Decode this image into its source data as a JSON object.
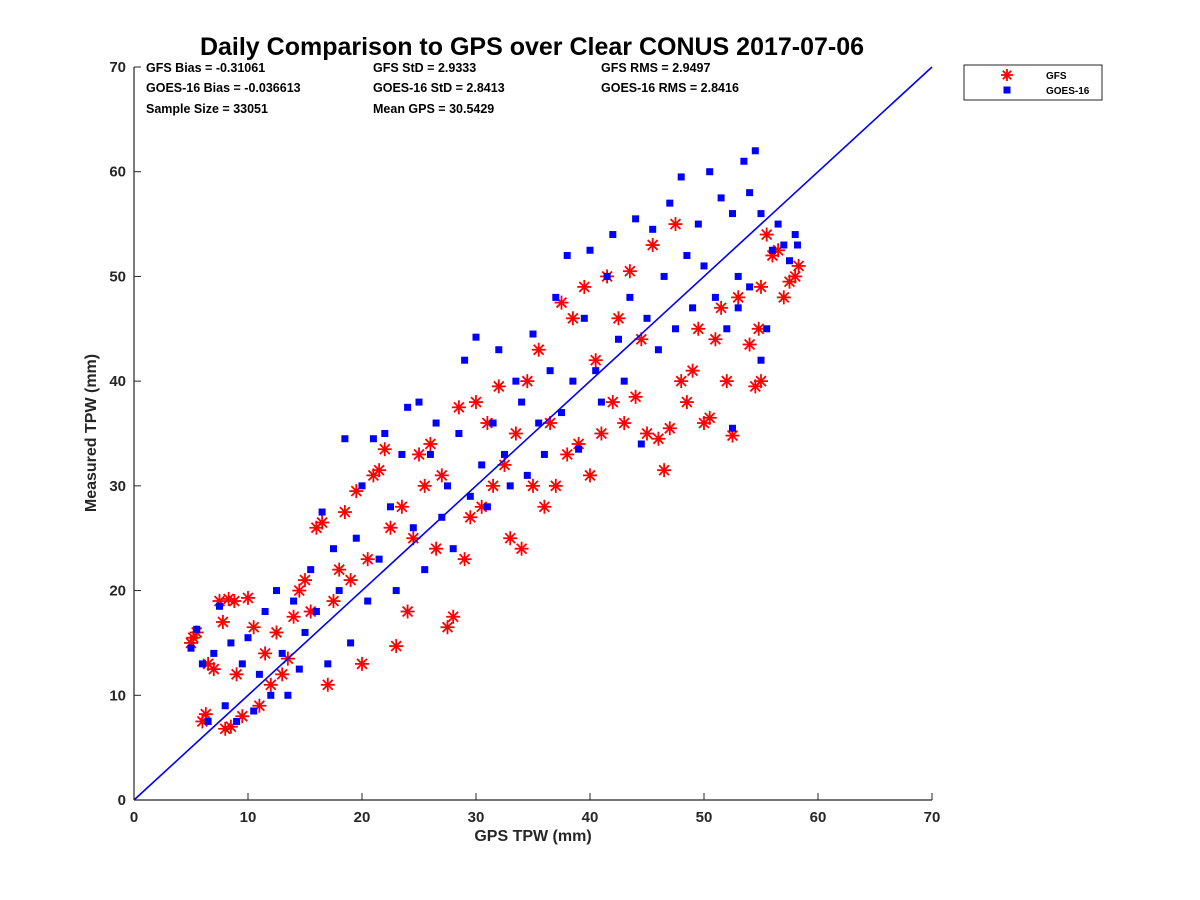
{
  "chart_data": {
    "type": "scatter",
    "title": "Daily Comparison to GPS over Clear CONUS 2017-07-06",
    "xlabel": "GPS TPW (mm)",
    "ylabel": "Measured TPW (mm)",
    "xlim": [
      0,
      70
    ],
    "ylim": [
      0,
      70
    ],
    "xticks": [
      "0",
      "10",
      "20",
      "30",
      "40",
      "50",
      "60",
      "70"
    ],
    "yticks": [
      "0",
      "10",
      "20",
      "30",
      "40",
      "50",
      "60",
      "70"
    ],
    "grid": false,
    "legend_position": "outside-top-right",
    "reference_line": {
      "name": "1:1 line",
      "color": "#0000ff",
      "x": [
        0,
        70
      ],
      "y": [
        0,
        70
      ]
    },
    "stats": [
      [
        "GFS Bias = -0.31061",
        "GFS StD = 2.9333",
        "GFS RMS = 2.9497"
      ],
      [
        "GOES-16 Bias = -0.036613",
        "GOES-16 StD = 2.8413",
        "GOES-16 RMS = 2.8416"
      ],
      [
        "Sample Size = 33051",
        "Mean GPS = 30.5429",
        ""
      ]
    ],
    "series": [
      {
        "name": "GFS",
        "marker": "asterisk",
        "color": "#ff0000",
        "points": [
          [
            5.0,
            15.0
          ],
          [
            5.2,
            15.5
          ],
          [
            5.5,
            16.0
          ],
          [
            6.0,
            7.5
          ],
          [
            6.3,
            8.2
          ],
          [
            6.5,
            13.0
          ],
          [
            7.0,
            12.5
          ],
          [
            7.5,
            19.0
          ],
          [
            7.8,
            17.0
          ],
          [
            8.0,
            6.8
          ],
          [
            8.3,
            19.2
          ],
          [
            8.5,
            7.0
          ],
          [
            8.8,
            19.0
          ],
          [
            9.0,
            12.0
          ],
          [
            9.5,
            8.0
          ],
          [
            10.0,
            19.3
          ],
          [
            10.5,
            16.5
          ],
          [
            11.0,
            9.0
          ],
          [
            11.5,
            14.0
          ],
          [
            12.0,
            11.0
          ],
          [
            12.5,
            16.0
          ],
          [
            13.0,
            12.0
          ],
          [
            13.5,
            13.5
          ],
          [
            14.0,
            17.5
          ],
          [
            14.5,
            20.0
          ],
          [
            15.0,
            21.0
          ],
          [
            15.5,
            18.0
          ],
          [
            16.0,
            26.0
          ],
          [
            16.5,
            26.5
          ],
          [
            17.0,
            11.0
          ],
          [
            17.5,
            19.0
          ],
          [
            18.0,
            22.0
          ],
          [
            18.5,
            27.5
          ],
          [
            19.0,
            21.0
          ],
          [
            19.5,
            29.5
          ],
          [
            20.0,
            13.0
          ],
          [
            20.5,
            23.0
          ],
          [
            21.0,
            31.0
          ],
          [
            21.5,
            31.5
          ],
          [
            22.0,
            33.5
          ],
          [
            22.5,
            26.0
          ],
          [
            23.0,
            14.7
          ],
          [
            23.5,
            28.0
          ],
          [
            24.0,
            18.0
          ],
          [
            24.5,
            25.0
          ],
          [
            25.0,
            33.0
          ],
          [
            25.5,
            30.0
          ],
          [
            26.0,
            34.0
          ],
          [
            26.5,
            24.0
          ],
          [
            27.0,
            31.0
          ],
          [
            27.5,
            16.5
          ],
          [
            28.0,
            17.5
          ],
          [
            28.5,
            37.5
          ],
          [
            29.0,
            23.0
          ],
          [
            29.5,
            27.0
          ],
          [
            30.0,
            38.0
          ],
          [
            30.5,
            28.0
          ],
          [
            31.0,
            36.0
          ],
          [
            31.5,
            30.0
          ],
          [
            32.0,
            39.5
          ],
          [
            32.5,
            32.0
          ],
          [
            33.0,
            25.0
          ],
          [
            33.5,
            35.0
          ],
          [
            34.0,
            24.0
          ],
          [
            34.5,
            40.0
          ],
          [
            35.0,
            30.0
          ],
          [
            35.5,
            43.0
          ],
          [
            36.0,
            28.0
          ],
          [
            36.5,
            36.0
          ],
          [
            37.0,
            30.0
          ],
          [
            37.5,
            47.5
          ],
          [
            38.0,
            33.0
          ],
          [
            38.5,
            46.0
          ],
          [
            39.0,
            34.0
          ],
          [
            39.5,
            49.0
          ],
          [
            40.0,
            31.0
          ],
          [
            40.5,
            42.0
          ],
          [
            41.0,
            35.0
          ],
          [
            41.5,
            50.0
          ],
          [
            42.0,
            38.0
          ],
          [
            42.5,
            46.0
          ],
          [
            43.0,
            36.0
          ],
          [
            43.5,
            50.5
          ],
          [
            44.0,
            38.5
          ],
          [
            44.5,
            44.0
          ],
          [
            45.0,
            35.0
          ],
          [
            45.5,
            53.0
          ],
          [
            46.0,
            34.5
          ],
          [
            46.5,
            31.5
          ],
          [
            47.0,
            35.5
          ],
          [
            47.5,
            55.0
          ],
          [
            48.0,
            40.0
          ],
          [
            48.5,
            38.0
          ],
          [
            49.0,
            41.0
          ],
          [
            49.5,
            45.0
          ],
          [
            50.0,
            36.0
          ],
          [
            50.5,
            36.5
          ],
          [
            51.0,
            44.0
          ],
          [
            51.5,
            47.0
          ],
          [
            52.0,
            40.0
          ],
          [
            52.5,
            34.8
          ],
          [
            53.0,
            48.0
          ],
          [
            54.0,
            43.5
          ],
          [
            54.5,
            39.5
          ],
          [
            55.0,
            40.0
          ],
          [
            55.5,
            54.0
          ],
          [
            56.0,
            52.0
          ],
          [
            56.5,
            52.5
          ],
          [
            57.0,
            48.0
          ],
          [
            57.5,
            49.5
          ],
          [
            58.0,
            50.0
          ],
          [
            58.3,
            51.0
          ],
          [
            55.0,
            49.0
          ],
          [
            54.8,
            45.0
          ]
        ]
      },
      {
        "name": "GOES-16",
        "marker": "square",
        "color": "#0000ff",
        "points": [
          [
            5.0,
            14.5
          ],
          [
            5.5,
            16.3
          ],
          [
            6.0,
            13.0
          ],
          [
            6.5,
            7.5
          ],
          [
            7.0,
            14.0
          ],
          [
            7.5,
            18.5
          ],
          [
            8.0,
            9.0
          ],
          [
            8.5,
            15.0
          ],
          [
            9.0,
            7.5
          ],
          [
            9.5,
            13.0
          ],
          [
            10.0,
            15.5
          ],
          [
            10.5,
            8.5
          ],
          [
            11.0,
            12.0
          ],
          [
            11.5,
            18.0
          ],
          [
            12.0,
            10.0
          ],
          [
            12.5,
            20.0
          ],
          [
            13.0,
            14.0
          ],
          [
            13.5,
            10.0
          ],
          [
            14.0,
            19.0
          ],
          [
            14.5,
            12.5
          ],
          [
            15.0,
            16.0
          ],
          [
            15.5,
            22.0
          ],
          [
            16.0,
            18.0
          ],
          [
            16.5,
            27.5
          ],
          [
            17.0,
            13.0
          ],
          [
            17.5,
            24.0
          ],
          [
            18.0,
            20.0
          ],
          [
            18.5,
            34.5
          ],
          [
            19.0,
            15.0
          ],
          [
            19.5,
            25.0
          ],
          [
            20.0,
            30.0
          ],
          [
            20.5,
            19.0
          ],
          [
            21.0,
            34.5
          ],
          [
            21.5,
            23.0
          ],
          [
            22.0,
            35.0
          ],
          [
            22.5,
            28.0
          ],
          [
            23.0,
            20.0
          ],
          [
            23.5,
            33.0
          ],
          [
            24.0,
            37.5
          ],
          [
            24.5,
            26.0
          ],
          [
            25.0,
            38.0
          ],
          [
            25.5,
            22.0
          ],
          [
            26.0,
            33.0
          ],
          [
            26.5,
            36.0
          ],
          [
            27.0,
            27.0
          ],
          [
            27.5,
            30.0
          ],
          [
            28.0,
            24.0
          ],
          [
            28.5,
            35.0
          ],
          [
            29.0,
            42.0
          ],
          [
            29.5,
            29.0
          ],
          [
            30.0,
            44.2
          ],
          [
            30.5,
            32.0
          ],
          [
            31.0,
            28.0
          ],
          [
            31.5,
            36.0
          ],
          [
            32.0,
            43.0
          ],
          [
            32.5,
            33.0
          ],
          [
            33.0,
            30.0
          ],
          [
            33.5,
            40.0
          ],
          [
            34.0,
            38.0
          ],
          [
            34.5,
            31.0
          ],
          [
            35.0,
            44.5
          ],
          [
            35.5,
            36.0
          ],
          [
            36.0,
            33.0
          ],
          [
            36.5,
            41.0
          ],
          [
            37.0,
            48.0
          ],
          [
            37.5,
            37.0
          ],
          [
            38.0,
            52.0
          ],
          [
            38.5,
            40.0
          ],
          [
            39.0,
            33.5
          ],
          [
            39.5,
            46.0
          ],
          [
            40.0,
            52.5
          ],
          [
            40.5,
            41.0
          ],
          [
            41.0,
            38.0
          ],
          [
            41.5,
            50.0
          ],
          [
            42.0,
            54.0
          ],
          [
            42.5,
            44.0
          ],
          [
            43.0,
            40.0
          ],
          [
            43.5,
            48.0
          ],
          [
            44.0,
            55.5
          ],
          [
            44.5,
            34.0
          ],
          [
            45.0,
            46.0
          ],
          [
            45.5,
            54.5
          ],
          [
            46.0,
            43.0
          ],
          [
            46.5,
            50.0
          ],
          [
            47.0,
            57.0
          ],
          [
            47.5,
            45.0
          ],
          [
            48.0,
            59.5
          ],
          [
            48.5,
            52.0
          ],
          [
            49.0,
            47.0
          ],
          [
            49.5,
            55.0
          ],
          [
            50.0,
            51.0
          ],
          [
            50.5,
            60.0
          ],
          [
            51.0,
            48.0
          ],
          [
            51.5,
            57.5
          ],
          [
            52.0,
            45.0
          ],
          [
            52.5,
            56.0
          ],
          [
            53.0,
            50.0
          ],
          [
            53.5,
            61.0
          ],
          [
            54.0,
            49.0
          ],
          [
            54.5,
            62.0
          ],
          [
            55.0,
            56.0
          ],
          [
            55.5,
            45.0
          ],
          [
            56.0,
            52.5
          ],
          [
            56.5,
            55.0
          ],
          [
            57.0,
            53.0
          ],
          [
            57.5,
            51.5
          ],
          [
            58.0,
            54.0
          ],
          [
            58.2,
            53.0
          ],
          [
            54.0,
            58.0
          ],
          [
            53.0,
            47.0
          ],
          [
            55.0,
            42.0
          ],
          [
            52.5,
            35.5
          ]
        ]
      }
    ]
  }
}
